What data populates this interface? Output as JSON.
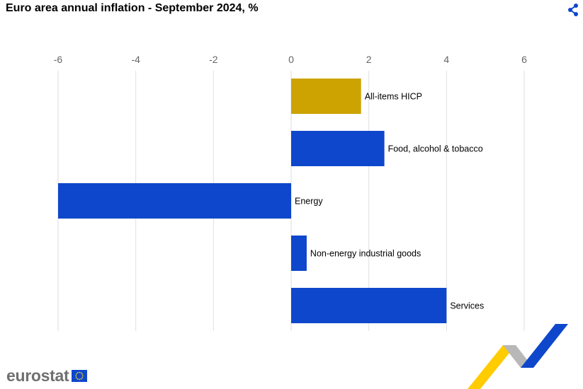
{
  "title": "Euro area annual inflation - September 2024, %",
  "share_icon": "share-icon",
  "logo": {
    "text": "eurostat",
    "flag_icon": "eu-flag-icon"
  },
  "colors": {
    "highlight": "#cca300",
    "bar": "#0e47cb",
    "grid": "#dedede",
    "tick_text": "#666666"
  },
  "chart_data": {
    "type": "bar",
    "orientation": "horizontal",
    "title": "Euro area annual inflation - September 2024, %",
    "categories": [
      "All-items HICP",
      "Food, alcohol & tobacco",
      "Energy",
      "Non-energy industrial goods",
      "Services"
    ],
    "values": [
      1.8,
      2.4,
      -6.0,
      0.4,
      4.0
    ],
    "highlight_index": 0,
    "xlim": [
      -6,
      6
    ],
    "xticks": [
      -6,
      -4,
      -2,
      0,
      2,
      4,
      6
    ],
    "xticks_position": "top",
    "grid": true,
    "xlabel": "",
    "ylabel": ""
  }
}
